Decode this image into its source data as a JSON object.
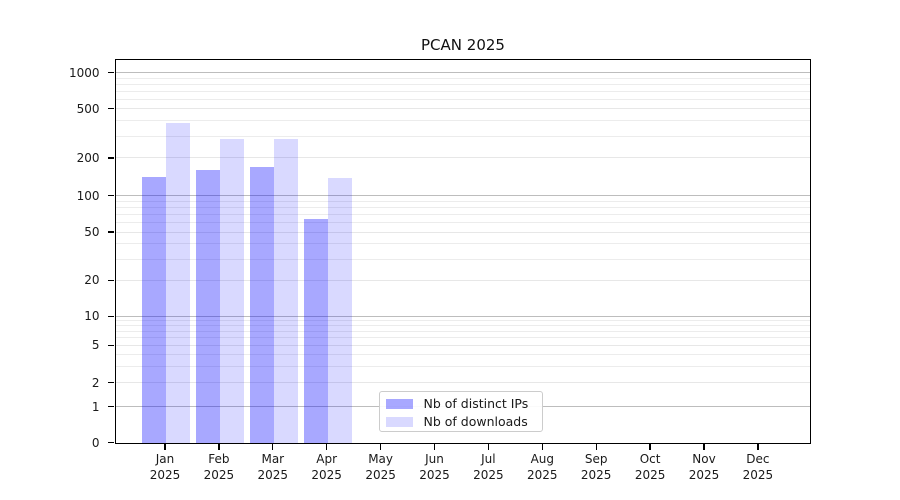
{
  "chart_data": {
    "type": "bar",
    "title": "PCAN 2025",
    "categories": [
      "Jan",
      "Feb",
      "Mar",
      "Apr",
      "May",
      "Jun",
      "Jul",
      "Aug",
      "Sep",
      "Oct",
      "Nov",
      "Dec"
    ],
    "x_tick_second_line": "2025",
    "y_ticks": [
      0,
      1,
      2,
      5,
      10,
      20,
      50,
      100,
      200,
      500,
      1000
    ],
    "y_major_gridlines": [
      1,
      10,
      100,
      1000
    ],
    "y_light_gridlines": [
      2,
      5,
      20,
      50,
      200,
      500
    ],
    "y_minor_gridlines": [
      3,
      4,
      6,
      7,
      8,
      9,
      30,
      40,
      60,
      70,
      80,
      90,
      300,
      400,
      600,
      700,
      800,
      900
    ],
    "y_scale": "symlog",
    "ylim": [
      0,
      1150
    ],
    "grid": true,
    "legend_position": "lower center",
    "series": [
      {
        "name": "Nb of distinct IPs",
        "color": "#0000FF",
        "alpha": 0.34,
        "blended_hex": "#A8A8FF",
        "values": [
          141,
          160,
          170,
          64,
          null,
          null,
          null,
          null,
          null,
          null,
          null,
          null
        ]
      },
      {
        "name": "Nb of downloads",
        "color": "#0000FF",
        "alpha": 0.15,
        "blended_hex": "#D9D9FF",
        "values": [
          380,
          287,
          285,
          138,
          null,
          null,
          null,
          null,
          null,
          null,
          null,
          null
        ]
      }
    ]
  }
}
